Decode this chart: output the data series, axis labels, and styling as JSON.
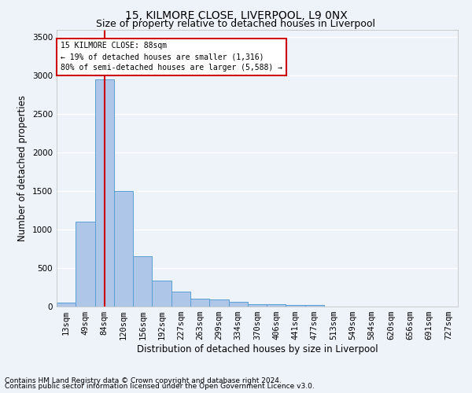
{
  "title_line1": "15, KILMORE CLOSE, LIVERPOOL, L9 0NX",
  "title_line2": "Size of property relative to detached houses in Liverpool",
  "xlabel": "Distribution of detached houses by size in Liverpool",
  "ylabel": "Number of detached properties",
  "footnote1": "Contains HM Land Registry data © Crown copyright and database right 2024.",
  "footnote2": "Contains public sector information licensed under the Open Government Licence v3.0.",
  "bar_labels": [
    "13sqm",
    "49sqm",
    "84sqm",
    "120sqm",
    "156sqm",
    "192sqm",
    "227sqm",
    "263sqm",
    "299sqm",
    "334sqm",
    "370sqm",
    "406sqm",
    "441sqm",
    "477sqm",
    "513sqm",
    "549sqm",
    "584sqm",
    "620sqm",
    "656sqm",
    "691sqm",
    "727sqm"
  ],
  "bar_values": [
    55,
    1100,
    2950,
    1500,
    650,
    340,
    195,
    105,
    90,
    65,
    35,
    30,
    25,
    25,
    0,
    0,
    0,
    0,
    0,
    0,
    0
  ],
  "bar_color": "#aec6e8",
  "bar_edge_color": "#5a9fd4",
  "annotation_box_text": "15 KILMORE CLOSE: 88sqm\n← 19% of detached houses are smaller (1,316)\n80% of semi-detached houses are larger (5,588) →",
  "annotation_box_color": "#cc0000",
  "property_line_x": 2.0,
  "ylim": [
    0,
    3600
  ],
  "yticks": [
    0,
    500,
    1000,
    1500,
    2000,
    2500,
    3000,
    3500
  ],
  "bg_color": "#eef2f9",
  "grid_color": "#ffffff",
  "title1_fontsize": 10,
  "title2_fontsize": 9,
  "axis_label_fontsize": 8.5,
  "tick_fontsize": 7.5,
  "footnote_fontsize": 6.5
}
